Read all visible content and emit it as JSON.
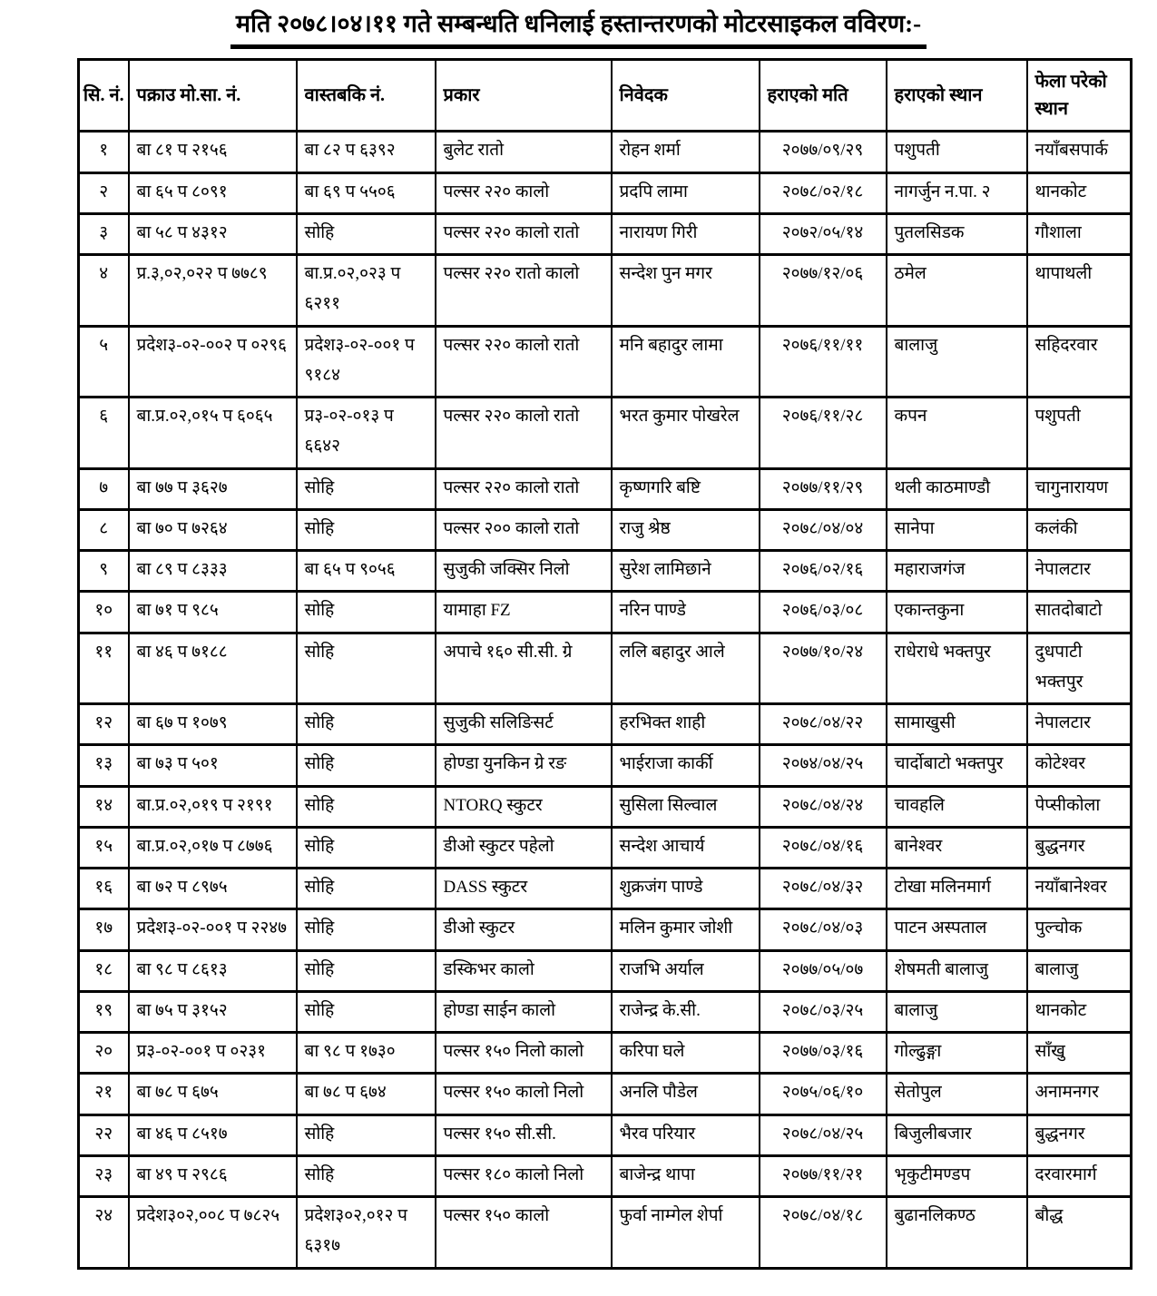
{
  "title": "मति २०७८।०४।११ गते सम्बन्धति धनिलाई हस्तान्तरणको मोटरसाइकल वविरण:-",
  "table": {
    "headers": [
      "सि. नं.",
      "पक्राउ मो.सा. नं.",
      "वास्तबकि नं.",
      "प्रकार",
      "निवेदक",
      "हराएको मति",
      "हराएको स्थान",
      "फेला परेको स्थान"
    ],
    "rows": [
      [
        "१",
        "बा ८१ प २१५६",
        "बा ८२ प ६३९२",
        "बुलेट रातो",
        "रोहन शर्मा",
        "२०७७/०९/२९",
        "पशुपती",
        "नयाँबसपार्क"
      ],
      [
        "२",
        "बा ६५ प ८०९१",
        "बा ६९ प ५५०६",
        "पल्सर २२० कालो",
        "प्रदपि लामा",
        "२०७८/०२/१८",
        "नागर्जुन न.पा. २",
        "थानकोट"
      ],
      [
        "३",
        "बा ५८ प ४३१२",
        "सोहि",
        "पल्सर २२० कालो रातो",
        "नारायण गिरी",
        "२०७२/०५/१४",
        "पुतलसिडक",
        "गौशाला"
      ],
      [
        "४",
        "प्र.३,०२,०२२ प ७७८९",
        "बा.प्र.०२,०२३ प ६२११",
        "पल्सर २२० रातो कालो",
        "सन्देश पुन मगर",
        "२०७७/१२/०६",
        "ठमेल",
        "थापाथली"
      ],
      [
        "५",
        "प्रदेश३-०२-००२ प ०२९६",
        "प्रदेश३-०२-००१ प ९१८४",
        "पल्सर २२० कालो रातो",
        "मनि बहादुर लामा",
        "२०७६/११/११",
        "बालाजु",
        "सहिदरवार"
      ],
      [
        "६",
        "बा.प्र.०२,०१५ प ६०६५",
        "प्र३-०२-०१३ प ६६४२",
        "पल्सर २२० कालो रातो",
        "भरत कुमार पोखरेल",
        "२०७६/११/२८",
        "कपन",
        "पशुपती"
      ],
      [
        "७",
        "बा ७७ प ३६२७",
        "सोहि",
        "पल्सर २२० कालो रातो",
        "कृष्णगरि बष्टि",
        "२०७७/११/२९",
        "थली काठमाण्डौ",
        "चागुनारायण"
      ],
      [
        "८",
        "बा ७० प ७२६४",
        "सोहि",
        "पल्सर २०० कालो रातो",
        "राजु श्रेष्ठ",
        "२०७८/०४/०४",
        "सानेपा",
        "कलंकी"
      ],
      [
        "९",
        "बा ८९ प ८३३३",
        "बा ६५ प ९०५६",
        "सुजुकी जक्सिर निलो",
        "सुरेश लामिछाने",
        "२०७६/०२/१६",
        "महाराजगंज",
        "नेपालटार"
      ],
      [
        "१०",
        "बा ७१ प ९८५",
        "सोहि",
        "यामाहा FZ",
        "नरिन पाण्डे",
        "२०७६/०३/०८",
        "एकान्तकुना",
        "सातदोबाटो"
      ],
      [
        "११",
        "बा ४६ प ७१८८",
        "सोहि",
        "अपाचे १६० सी.सी. ग्रे",
        "ललि बहादुर आले",
        "२०७७/१०/२४",
        "राधेराधे भक्तपुर",
        "दुधपाटी भक्तपुर"
      ],
      [
        "१२",
        "बा ६७ प १०७९",
        "सोहि",
        "सुजुकी सलिङिसर्ट",
        "हरभिक्त शाही",
        "२०७८/०४/२२",
        "सामाखुसी",
        "नेपालटार"
      ],
      [
        "१३",
        "बा ७३ प ५०१",
        "सोहि",
        "होण्डा युनकिन ग्रे रङ",
        "भाईराजा कार्की",
        "२०७४/०४/२५",
        "चार्दोबाटो भक्तपुर",
        "कोटेश्वर"
      ],
      [
        "१४",
        "बा.प्र.०२,०१९ प २१९१",
        "सोहि",
        "NTORQ स्कुटर",
        "सुसिला सिल्वाल",
        "२०७८/०४/२४",
        "चावहलि",
        "पेप्सीकोला"
      ],
      [
        "१५",
        "बा.प्र.०२,०१७ प ८७७६",
        "सोहि",
        "डीओ स्कुटर पहेलो",
        "सन्देश आचार्य",
        "२०७८/०४/१६",
        "बानेश्वर",
        "बुद्धनगर"
      ],
      [
        "१६",
        "बा ७२ प ८९७५",
        "सोहि",
        "DASS स्कुटर",
        "शुक्रजंग पाण्डे",
        "२०७८/०४/३२",
        "टोखा मलिनमार्ग",
        "नयाँबानेश्वर"
      ],
      [
        "१७",
        "प्रदेश३-०२-००१ प २२४७",
        "सोहि",
        "डीओ स्कुटर",
        "मलिन कुमार जोशी",
        "२०७८/०४/०३",
        "पाटन अस्पताल",
        "पुल्चोक"
      ],
      [
        "१८",
        "बा ९८ प ८६१३",
        "सोहि",
        "डस्किभर कालो",
        "राजभि अर्याल",
        "२०७७/०५/०७",
        "शेषमती बालाजु",
        "बालाजु"
      ],
      [
        "१९",
        "बा ७५ प ३१५२",
        "सोहि",
        "होण्डा साईन कालो",
        "राजेन्द्र के.सी.",
        "२०७८/०३/२५",
        "बालाजु",
        "थानकोट"
      ],
      [
        "२०",
        "प्र३-०२-००१ प ०२३१",
        "बा ९८ प १७३०",
        "पल्सर १५० निलो कालो",
        "करिपा घले",
        "२०७७/०३/१६",
        "गोल्ढुङ्गा",
        "साँखु"
      ],
      [
        "२१",
        "बा ७८ प ६७५",
        "बा ७८ प ६७४",
        "पल्सर १५० कालो निलो",
        "अनलि पौडेल",
        "२०७५/०६/१०",
        "सेतोपुल",
        "अनामनगर"
      ],
      [
        "२२",
        "बा ४६ प ८५१७",
        "सोहि",
        "पल्सर १५० सी.सी.",
        "भैरव परियार",
        "२०७८/०४/२५",
        "बिजुलीबजार",
        "बुद्धनगर"
      ],
      [
        "२३",
        "बा ४९ प २९८६",
        "सोहि",
        "पल्सर १८० कालो निलो",
        "बाजेन्द्र थापा",
        "२०७७/११/२१",
        "भृकुटीमण्डप",
        "दरवारमार्ग"
      ],
      [
        "२४",
        "प्रदेश३०२,००८ प ७८२५",
        "प्रदेश३०२,०१२ प ६३१७",
        "पल्सर १५० कालो",
        "फुर्वा नाम्गेल शेर्पा",
        "२०७८/०४/१८",
        "बुढानलिकण्ठ",
        "बौद्ध"
      ]
    ]
  }
}
